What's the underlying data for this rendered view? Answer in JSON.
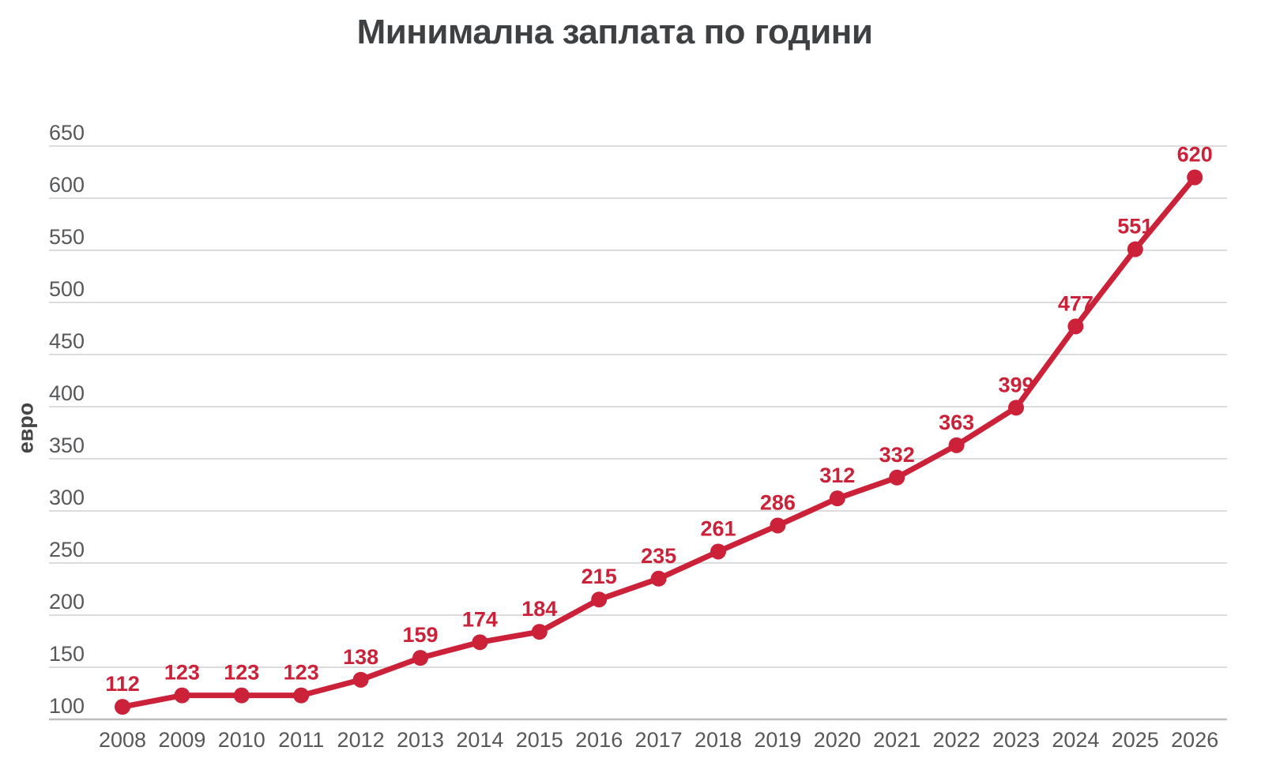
{
  "chart": {
    "title": "Минимална заплата по години",
    "ylabel": "евро"
  },
  "chart_data": {
    "type": "line",
    "title": "Минимална заплата по години",
    "xlabel": "",
    "ylabel": "евро",
    "categories": [
      "2008",
      "2009",
      "2010",
      "2011",
      "2012",
      "2013",
      "2014",
      "2015",
      "2016",
      "2017",
      "2018",
      "2019",
      "2020",
      "2021",
      "2022",
      "2023",
      "2024",
      "2025",
      "2026"
    ],
    "values": [
      112,
      123,
      123,
      123,
      138,
      159,
      174,
      184,
      215,
      235,
      261,
      286,
      312,
      332,
      363,
      399,
      477,
      551,
      620
    ],
    "data_labels_visible": true,
    "ylim": [
      100,
      650
    ],
    "ytick_step": 50,
    "grid": true,
    "legend": "none",
    "colors": {
      "line": "#cb2139",
      "point": "#cb2139",
      "data_label": "#cb2139",
      "tick_label": "#57585a",
      "title": "#3f4042",
      "gridline": "#dcdcdc",
      "baseline": "#bdbdbd",
      "background": "#ffffff"
    }
  }
}
